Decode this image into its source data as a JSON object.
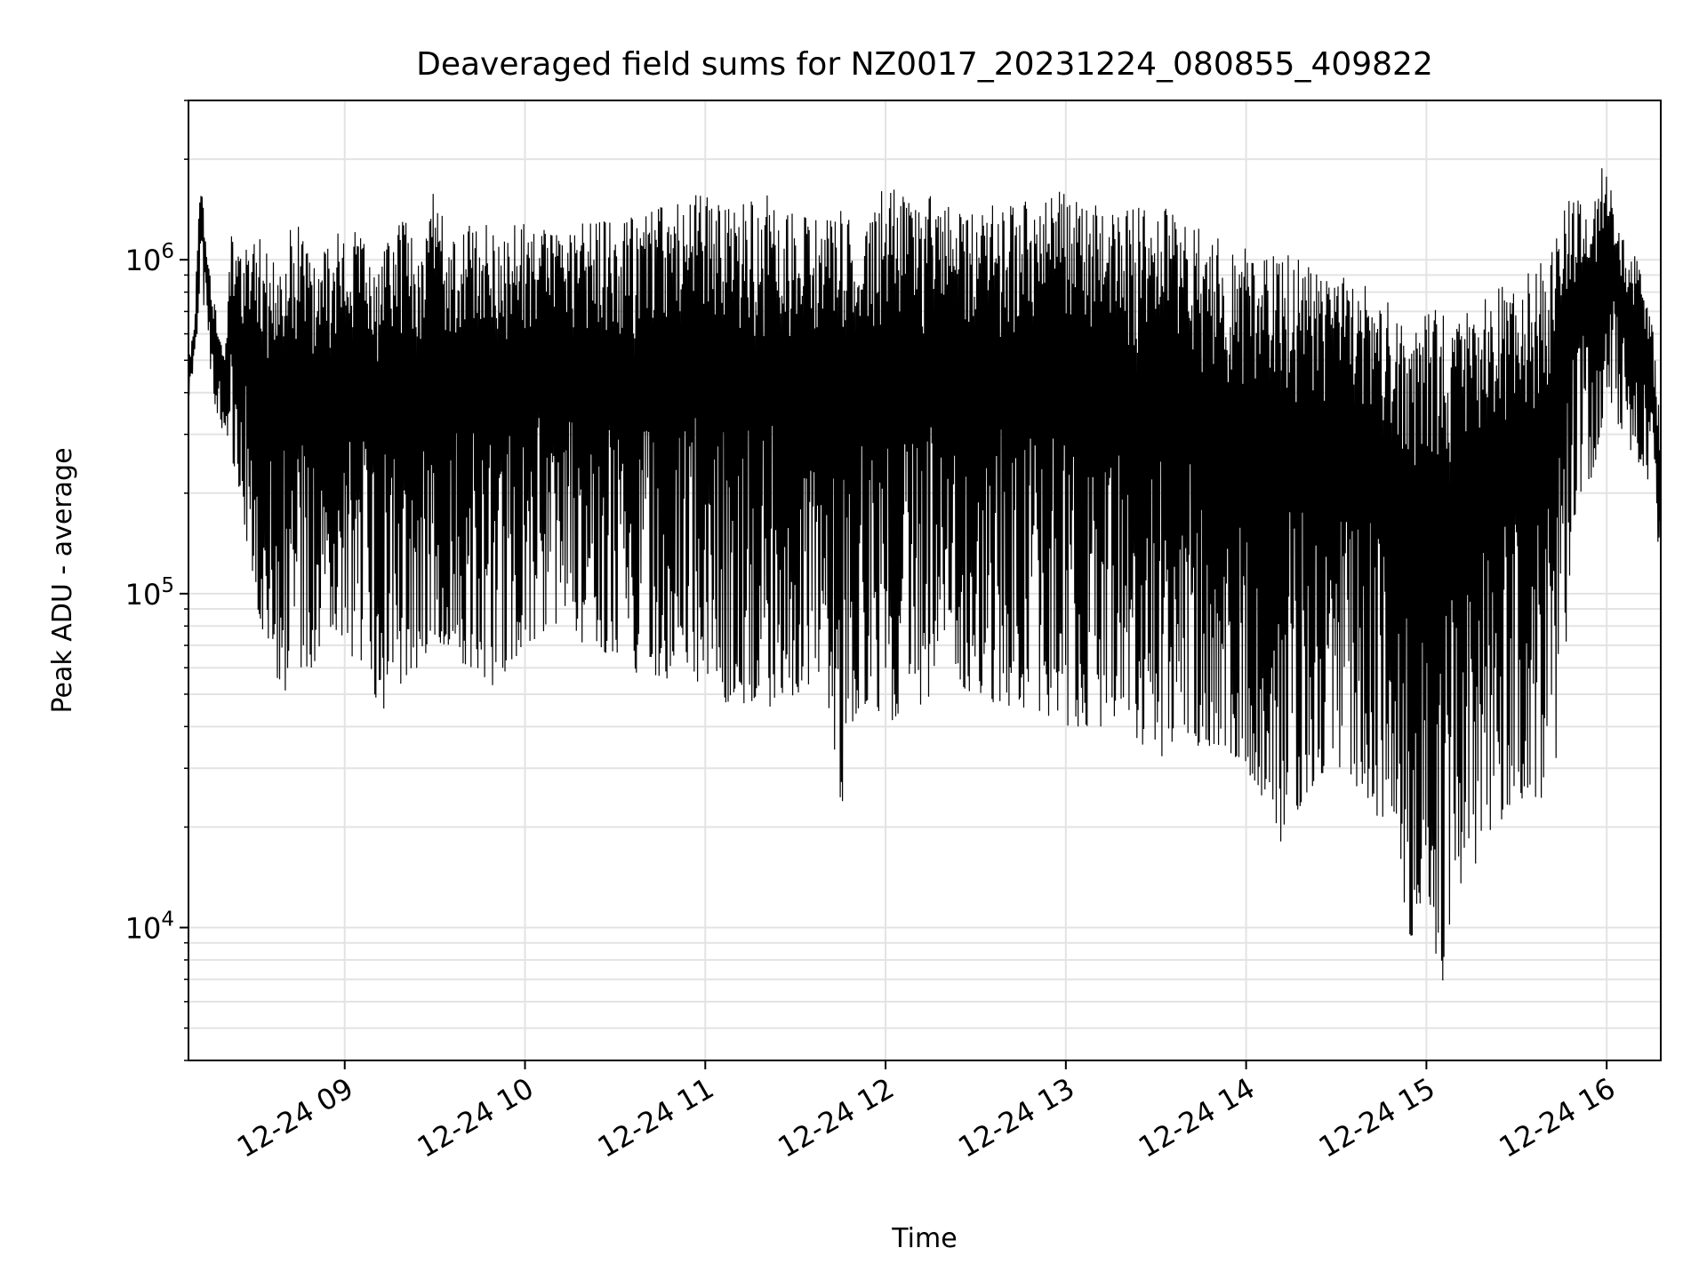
{
  "chart_data": {
    "type": "line",
    "title": "Deaveraged field sums for NZ0017_20231224_080855_409822",
    "xlabel": "Time",
    "ylabel": "Peak ADU - average",
    "y_scale": "log",
    "ylim": [
      4000,
      3000000
    ],
    "xlim": [
      "2023-12-24 08:08",
      "2023-12-24 16:18"
    ],
    "grid": true,
    "line_color": "#000000",
    "x_ticks": [
      {
        "value": "2023-12-24 09:00",
        "label": "12-24 09"
      },
      {
        "value": "2023-12-24 10:00",
        "label": "12-24 10"
      },
      {
        "value": "2023-12-24 11:00",
        "label": "12-24 11"
      },
      {
        "value": "2023-12-24 12:00",
        "label": "12-24 12"
      },
      {
        "value": "2023-12-24 13:00",
        "label": "12-24 13"
      },
      {
        "value": "2023-12-24 14:00",
        "label": "12-24 14"
      },
      {
        "value": "2023-12-24 15:00",
        "label": "12-24 15"
      },
      {
        "value": "2023-12-24 16:00",
        "label": "12-24 16"
      }
    ],
    "y_ticks": [
      {
        "value": 10000,
        "base": "10",
        "exp": "4"
      },
      {
        "value": 100000,
        "base": "10",
        "exp": "5"
      },
      {
        "value": 1000000,
        "base": "10",
        "exp": "6"
      }
    ],
    "series": [
      {
        "x": [
          "08:08",
          "08:10",
          "08:12",
          "08:14",
          "08:16",
          "08:18",
          "08:20",
          "08:22",
          "08:25",
          "08:30",
          "08:35",
          "08:40",
          "08:45",
          "08:50",
          "08:55",
          "09:00",
          "09:05",
          "09:10",
          "09:15",
          "09:20",
          "09:25",
          "09:30",
          "09:35",
          "09:40",
          "09:45",
          "09:50",
          "09:55",
          "10:00",
          "10:10",
          "10:20",
          "10:30",
          "10:40",
          "10:50",
          "11:00",
          "11:10",
          "11:20",
          "11:30",
          "11:40",
          "11:45",
          "11:50",
          "11:55",
          "12:00",
          "12:10",
          "12:20",
          "12:30",
          "12:40",
          "12:50",
          "13:00",
          "13:10",
          "13:20",
          "13:30",
          "13:40",
          "13:50",
          "14:00",
          "14:05",
          "14:10",
          "14:20",
          "14:30",
          "14:40",
          "14:45",
          "14:50",
          "14:55",
          "15:00",
          "15:05",
          "15:10",
          "15:15",
          "15:20",
          "15:30",
          "15:40",
          "15:45",
          "15:50",
          "15:55",
          "16:00",
          "16:05",
          "16:10",
          "16:15",
          "16:18"
        ],
        "high": [
          500000,
          650000,
          2000000,
          1100000,
          800000,
          700000,
          500000,
          1200000,
          1000000,
          1300000,
          1000000,
          1200000,
          1400000,
          1000000,
          1100000,
          1300000,
          1200000,
          1000000,
          1300000,
          1400000,
          1000000,
          1700000,
          1100000,
          1300000,
          1400000,
          1200000,
          1300000,
          1300000,
          1200000,
          1400000,
          1300000,
          1400000,
          1600000,
          1600000,
          1500000,
          1600000,
          1400000,
          1300000,
          1500000,
          1200000,
          1500000,
          1700000,
          1600000,
          1500000,
          1400000,
          1500000,
          1600000,
          1600000,
          1500000,
          1400000,
          1500000,
          1300000,
          1200000,
          1100000,
          1000000,
          1100000,
          1000000,
          900000,
          850000,
          800000,
          750000,
          700000,
          750000,
          700000,
          750000,
          700000,
          800000,
          900000,
          1000000,
          1500000,
          1600000,
          1400000,
          2200000,
          1200000,
          1000000,
          700000,
          300000
        ],
        "low": [
          380000,
          450000,
          900000,
          600000,
          400000,
          330000,
          300000,
          260000,
          200000,
          100000,
          60000,
          50000,
          60000,
          60000,
          80000,
          70000,
          60000,
          37000,
          50000,
          55000,
          60000,
          75000,
          60000,
          60000,
          55000,
          50000,
          60000,
          70000,
          80000,
          70000,
          65000,
          55000,
          55000,
          52000,
          45000,
          45000,
          50000,
          55000,
          22000,
          40000,
          50000,
          40000,
          45000,
          55000,
          50000,
          45000,
          45000,
          40000,
          40000,
          40000,
          32000,
          35000,
          35000,
          30000,
          25000,
          17000,
          25000,
          30000,
          25000,
          20000,
          16000,
          9000,
          14000,
          6000,
          13000,
          15000,
          17000,
          25000,
          20000,
          40000,
          200000,
          200000,
          400000,
          300000,
          250000,
          200000,
          100000
        ]
      }
    ]
  }
}
